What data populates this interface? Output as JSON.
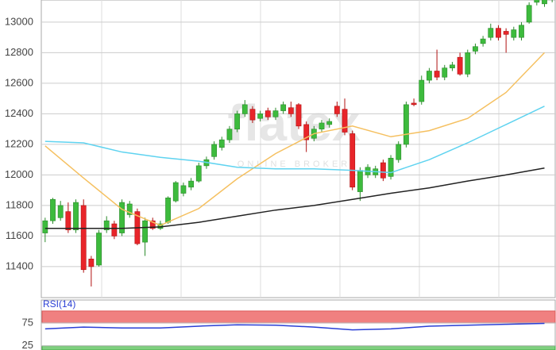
{
  "chart_data": {
    "type": "candlestick",
    "watermark": "flatex",
    "watermark_sub": "ONLINE BROKER",
    "ylim": [
      11197,
      13145
    ],
    "yticks": [
      {
        "value": 11400,
        "label": "11400"
      },
      11600,
      11800,
      12000,
      12200,
      12400,
      12600,
      12800,
      13000
    ],
    "up_color": "#3dbb3d",
    "down_color": "#e8252a",
    "ohlc": [
      [
        11620,
        11720,
        11560,
        11700
      ],
      [
        11700,
        11850,
        11680,
        11840
      ],
      [
        11720,
        11830,
        11700,
        11800
      ],
      [
        11760,
        11820,
        11620,
        11640
      ],
      [
        11640,
        11840,
        11620,
        11820
      ],
      [
        11800,
        11840,
        11360,
        11380
      ],
      [
        11450,
        11470,
        11270,
        11400
      ],
      [
        11410,
        11640,
        11400,
        11620
      ],
      [
        11640,
        11730,
        11620,
        11700
      ],
      [
        11680,
        11700,
        11580,
        11600
      ],
      [
        11620,
        11840,
        11600,
        11820
      ],
      [
        11740,
        11830,
        11720,
        11810
      ],
      [
        11760,
        11780,
        11540,
        11550
      ],
      [
        11560,
        11720,
        11470,
        11700
      ],
      [
        11700,
        11720,
        11640,
        11650
      ],
      [
        11650,
        11700,
        11640,
        11680
      ],
      [
        11690,
        11860,
        11680,
        11850
      ],
      [
        11830,
        11960,
        11820,
        11950
      ],
      [
        11880,
        11950,
        11860,
        11930
      ],
      [
        11920,
        11980,
        11900,
        11960
      ],
      [
        11960,
        12080,
        11950,
        12060
      ],
      [
        12060,
        12120,
        12040,
        12100
      ],
      [
        12120,
        12220,
        12100,
        12200
      ],
      [
        12180,
        12250,
        12160,
        12230
      ],
      [
        12230,
        12320,
        12210,
        12300
      ],
      [
        12300,
        12420,
        12280,
        12400
      ],
      [
        12400,
        12490,
        12380,
        12460
      ],
      [
        12430,
        12450,
        12340,
        12360
      ],
      [
        12370,
        12420,
        12350,
        12400
      ],
      [
        12420,
        12440,
        12360,
        12380
      ],
      [
        12380,
        12440,
        12360,
        12420
      ],
      [
        12420,
        12480,
        12400,
        12460
      ],
      [
        12440,
        12480,
        12380,
        12400
      ],
      [
        12460,
        12470,
        12300,
        12320
      ],
      [
        12330,
        12350,
        12150,
        12230
      ],
      [
        12240,
        12320,
        12220,
        12300
      ],
      [
        12300,
        12360,
        12280,
        12340
      ],
      [
        12330,
        12370,
        12310,
        12350
      ],
      [
        12450,
        12480,
        12380,
        12400
      ],
      [
        12430,
        12500,
        12260,
        12280
      ],
      [
        12270,
        12290,
        11900,
        11920
      ],
      [
        11890,
        12050,
        11830,
        12030
      ],
      [
        12000,
        12070,
        11980,
        12050
      ],
      [
        12000,
        12060,
        11980,
        12040
      ],
      [
        12080,
        12100,
        11960,
        11980
      ],
      [
        11990,
        12130,
        11970,
        12110
      ],
      [
        12100,
        12220,
        12080,
        12200
      ],
      [
        12200,
        12480,
        12180,
        12460
      ],
      [
        12470,
        12500,
        12450,
        12460
      ],
      [
        12480,
        12650,
        12460,
        12620
      ],
      [
        12620,
        12700,
        12600,
        12680
      ],
      [
        12680,
        12820,
        12620,
        12640
      ],
      [
        12640,
        12720,
        12620,
        12700
      ],
      [
        12700,
        12740,
        12680,
        12720
      ],
      [
        12770,
        12800,
        12650,
        12660
      ],
      [
        12660,
        12820,
        12640,
        12800
      ],
      [
        12810,
        12860,
        12790,
        12840
      ],
      [
        12860,
        12910,
        12840,
        12890
      ],
      [
        12900,
        12990,
        12880,
        12960
      ],
      [
        12960,
        12980,
        12880,
        12900
      ],
      [
        12940,
        12960,
        12800,
        12920
      ],
      [
        12900,
        12970,
        12880,
        12950
      ],
      [
        12900,
        13000,
        12880,
        12980
      ],
      [
        13000,
        13130,
        12990,
        13110
      ],
      [
        13130,
        13200,
        13110,
        13150
      ],
      [
        13120,
        13180,
        13100,
        13150
      ],
      [
        13150,
        13190,
        13130,
        13160
      ]
    ],
    "lines": [
      {
        "color": "#f5c060",
        "x": [
          0,
          5,
          10,
          15,
          20,
          25,
          30,
          35,
          40,
          45,
          50,
          55,
          60,
          65
        ],
        "values": [
          12190,
          11980,
          11775,
          11670,
          11780,
          11975,
          12140,
          12270,
          12320,
          12250,
          12290,
          12370,
          12540,
          12800
        ]
      },
      {
        "color": "#5fd3f0",
        "x": [
          0,
          5,
          10,
          15,
          20,
          25,
          30,
          35,
          40,
          45,
          50,
          55,
          60,
          65
        ],
        "values": [
          12220,
          12210,
          12150,
          12115,
          12090,
          12050,
          12040,
          12040,
          12030,
          12015,
          12100,
          12210,
          12330,
          12450
        ]
      },
      {
        "color": "#222222",
        "x": [
          0,
          5,
          10,
          15,
          20,
          25,
          30,
          35,
          40,
          45,
          50,
          55,
          60,
          65
        ],
        "values": [
          11650,
          11650,
          11650,
          11660,
          11690,
          11730,
          11770,
          11800,
          11840,
          11880,
          11915,
          11960,
          12000,
          12045
        ]
      }
    ],
    "rsi": {
      "label": "RSI(14)",
      "color": "#2a3fd6",
      "ylim": [
        16,
        125
      ],
      "yticks": [
        25,
        75
      ],
      "x": [
        0,
        5,
        10,
        15,
        20,
        25,
        30,
        35,
        40,
        45,
        50,
        55,
        60,
        65
      ],
      "values": [
        62,
        66,
        64,
        64,
        68,
        71,
        70,
        66,
        60,
        62,
        68,
        70,
        72,
        74
      ]
    }
  }
}
